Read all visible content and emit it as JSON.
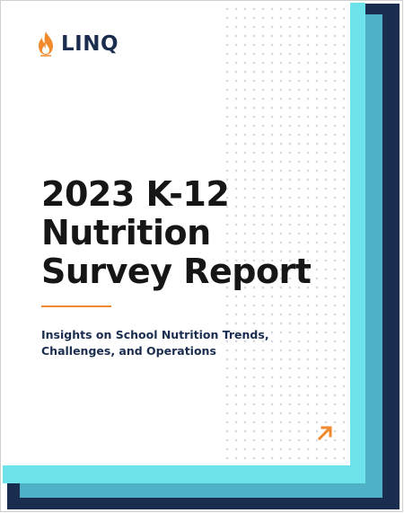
{
  "logo": {
    "text": "LINQ",
    "icon": "flame-icon",
    "brand_color": "#1b2d4f",
    "flame_color": "#f08a2c"
  },
  "cover": {
    "title_lines": [
      "2023 K-12",
      "Nutrition",
      "Survey Report"
    ],
    "subtitle_lines": [
      "Insights on School Nutrition Trends,",
      "Challenges, and Operations"
    ],
    "accent_color": "#f08a2c",
    "arrow_icon": "arrow-up-right-icon"
  },
  "colors": {
    "navy": "#1b2d4f",
    "teal": "#4fb1c6",
    "cyan": "#6ee2ea"
  }
}
